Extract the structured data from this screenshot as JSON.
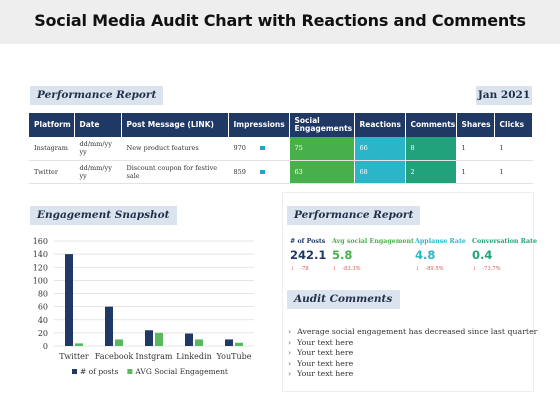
{
  "title": "Social Media Audit Chart with Reactions and Comments",
  "performance_report": {
    "label": "Performance Report",
    "date": "Jan 2021",
    "columns": [
      "Platform",
      "Date",
      "Post Message  (LINK)",
      "Impressions",
      "Social Engagements",
      "Reactions",
      "Comments",
      "Shares",
      "Clicks"
    ],
    "rows": [
      {
        "platform": "Instagram",
        "date": "dd/mm/yy yy",
        "message": "New product features",
        "impressions": "970",
        "social": "75",
        "reactions": "66",
        "comments": "8",
        "shares": "1",
        "clicks": "1"
      },
      {
        "platform": "Twitter",
        "date": "dd/mm/yy yy",
        "message": "Discount coupon for festive sale",
        "impressions": "859",
        "social": "63",
        "reactions": "68",
        "comments": "2",
        "shares": "1",
        "clicks": "1"
      }
    ]
  },
  "engagement_snapshot": {
    "label": "Engagement Snapshot"
  },
  "chart_data": {
    "type": "bar",
    "categories": [
      "Twitter",
      "Facebook",
      "Instgram",
      "Linkedin",
      "YouTube"
    ],
    "series": [
      {
        "name": "# of posts",
        "values": [
          140,
          60,
          24,
          19,
          10
        ]
      },
      {
        "name": "AVG Social Engagement",
        "values": [
          4,
          10,
          20,
          10,
          5
        ]
      }
    ],
    "ylim": [
      0,
      160
    ],
    "yticks": [
      0,
      20,
      40,
      60,
      80,
      100,
      120,
      140,
      160
    ],
    "grid": true,
    "legend": "bottom",
    "colors": {
      "posts": "#1f3864",
      "engagement": "#5cb85c",
      "grid": "#dddddd",
      "axis_text": "#333333"
    }
  },
  "kpi": {
    "label": "Performance Report",
    "metrics": [
      {
        "label": "# of Posts",
        "value": "242.1",
        "change": "-78",
        "color": "#1f3864"
      },
      {
        "label": "Avg social Engagement",
        "value": "5.8",
        "change": "-83.3%",
        "color": "#47b04b"
      },
      {
        "label": "Applause Rate",
        "value": "4.8",
        "change": "-89.5%",
        "color": "#2bb5c8"
      },
      {
        "label": "Conversation Rate",
        "value": "0.4",
        "change": "-73.7%",
        "color": "#22a27a"
      }
    ],
    "arrow": "↓"
  },
  "audit_comments": {
    "label": "Audit Comments",
    "bullet": "›",
    "items": [
      "Average social engagement has decreased since last quarter",
      "Your text here",
      "Your text here",
      "Your text here",
      "Your text here"
    ]
  }
}
